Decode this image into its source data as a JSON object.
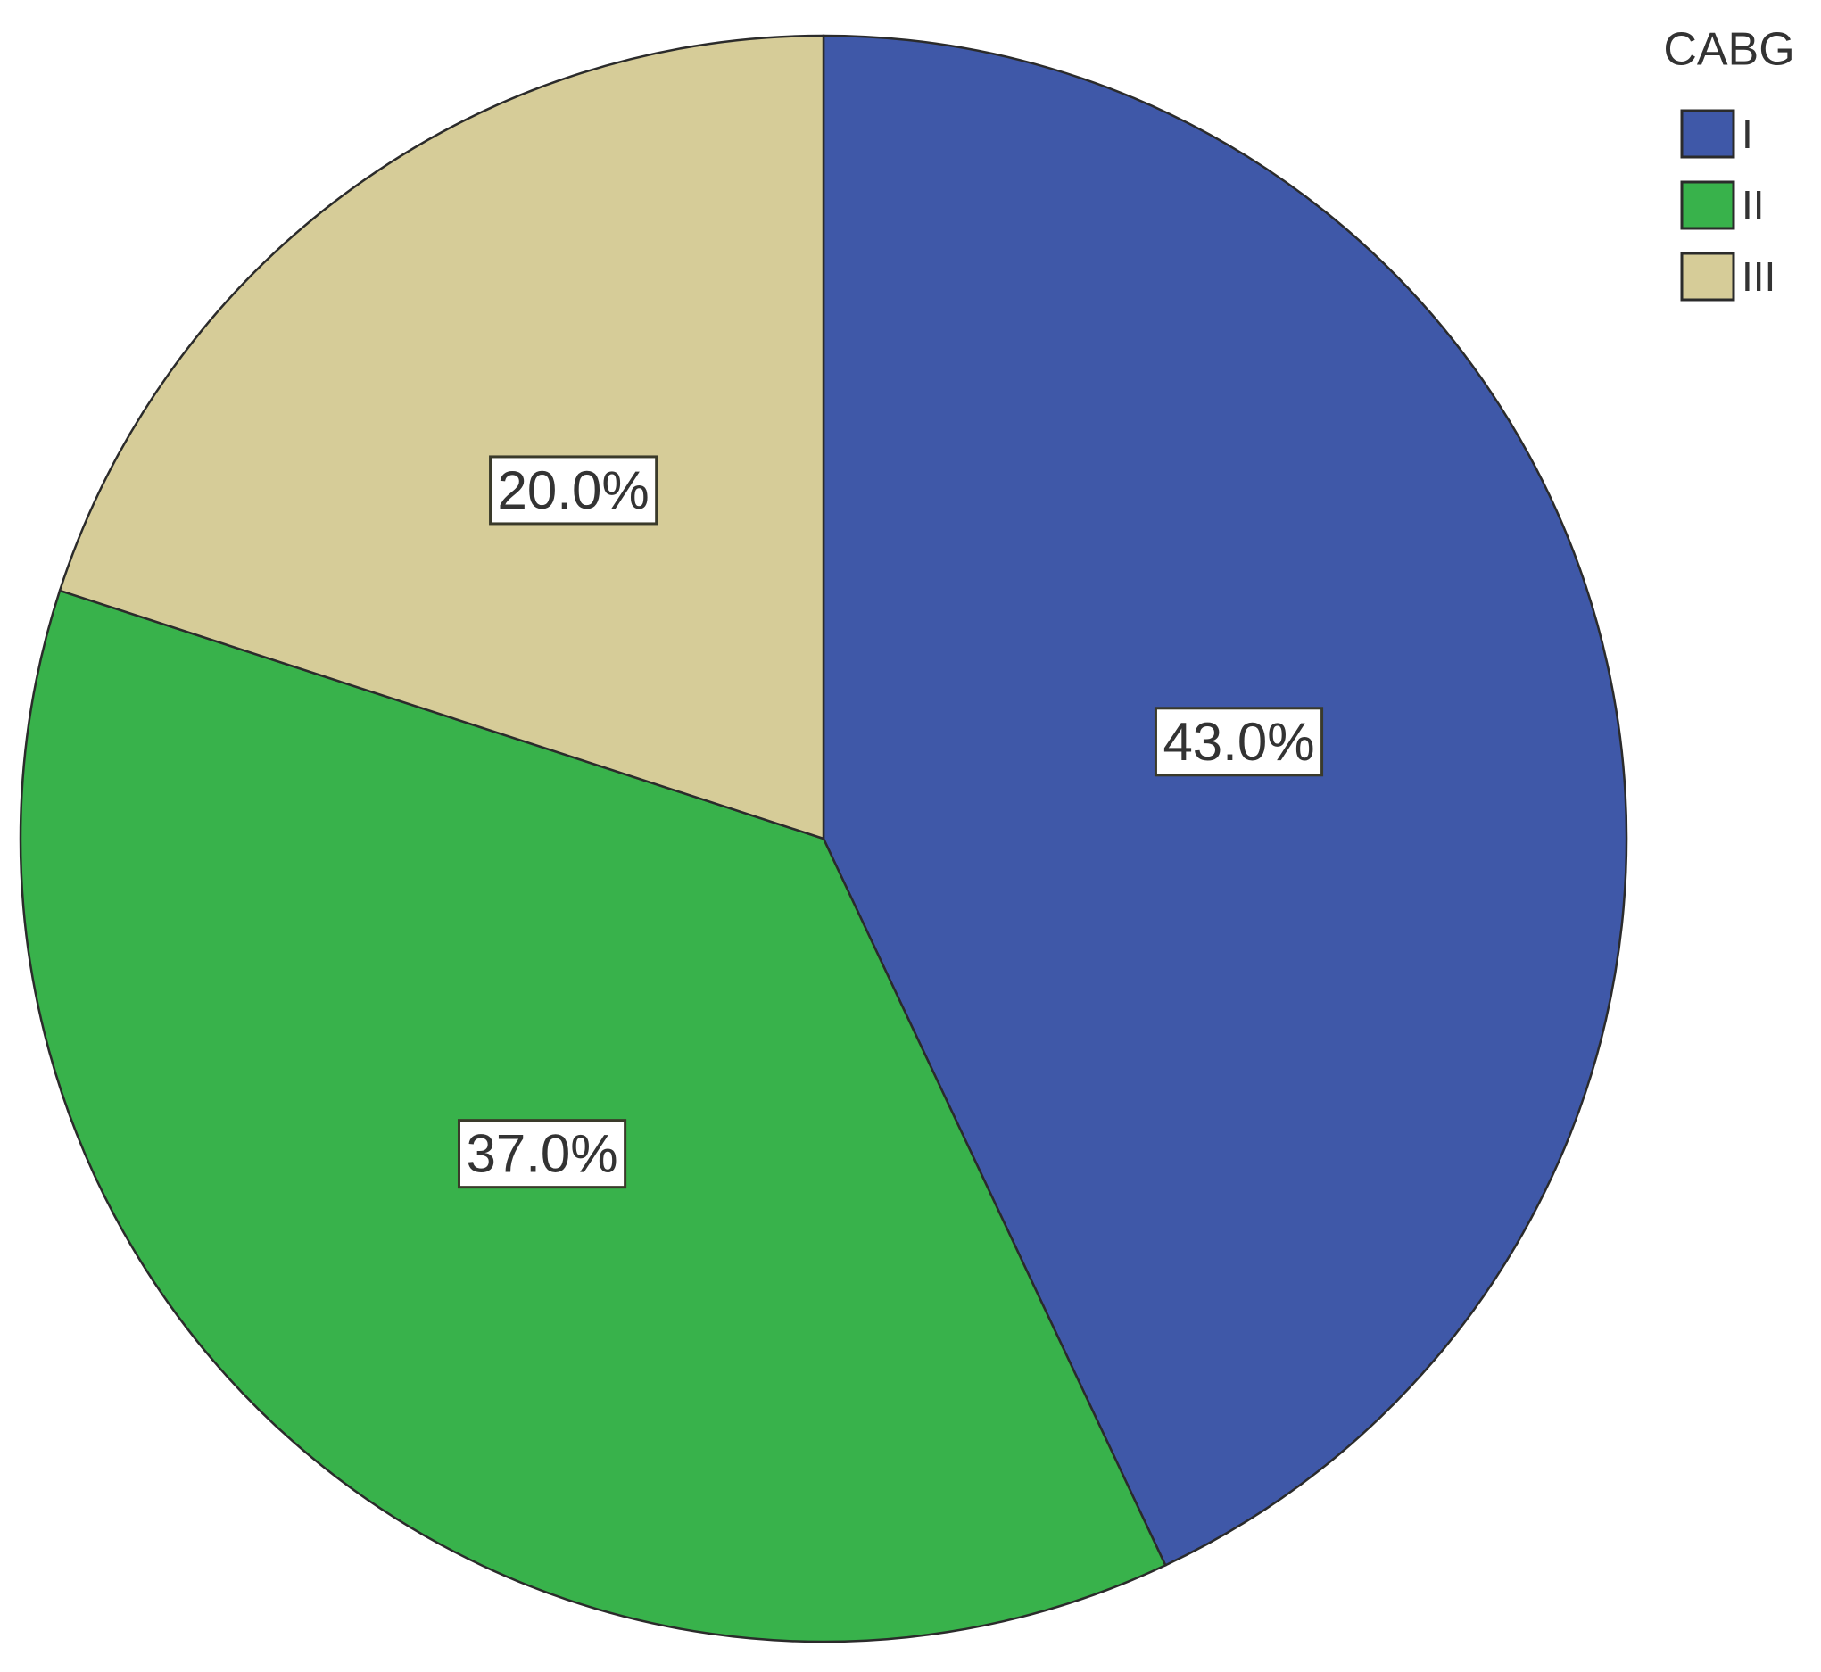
{
  "chart_data": {
    "type": "pie",
    "legend_title": "CABG",
    "categories": [
      "I",
      "II",
      "III"
    ],
    "values": [
      43,
      37,
      20
    ],
    "value_labels": [
      "43.0%",
      "37.0%",
      "20.0%"
    ],
    "colors": [
      "#3f58a8",
      "#38b24b",
      "#d6cc98"
    ],
    "legend": "top-right"
  }
}
